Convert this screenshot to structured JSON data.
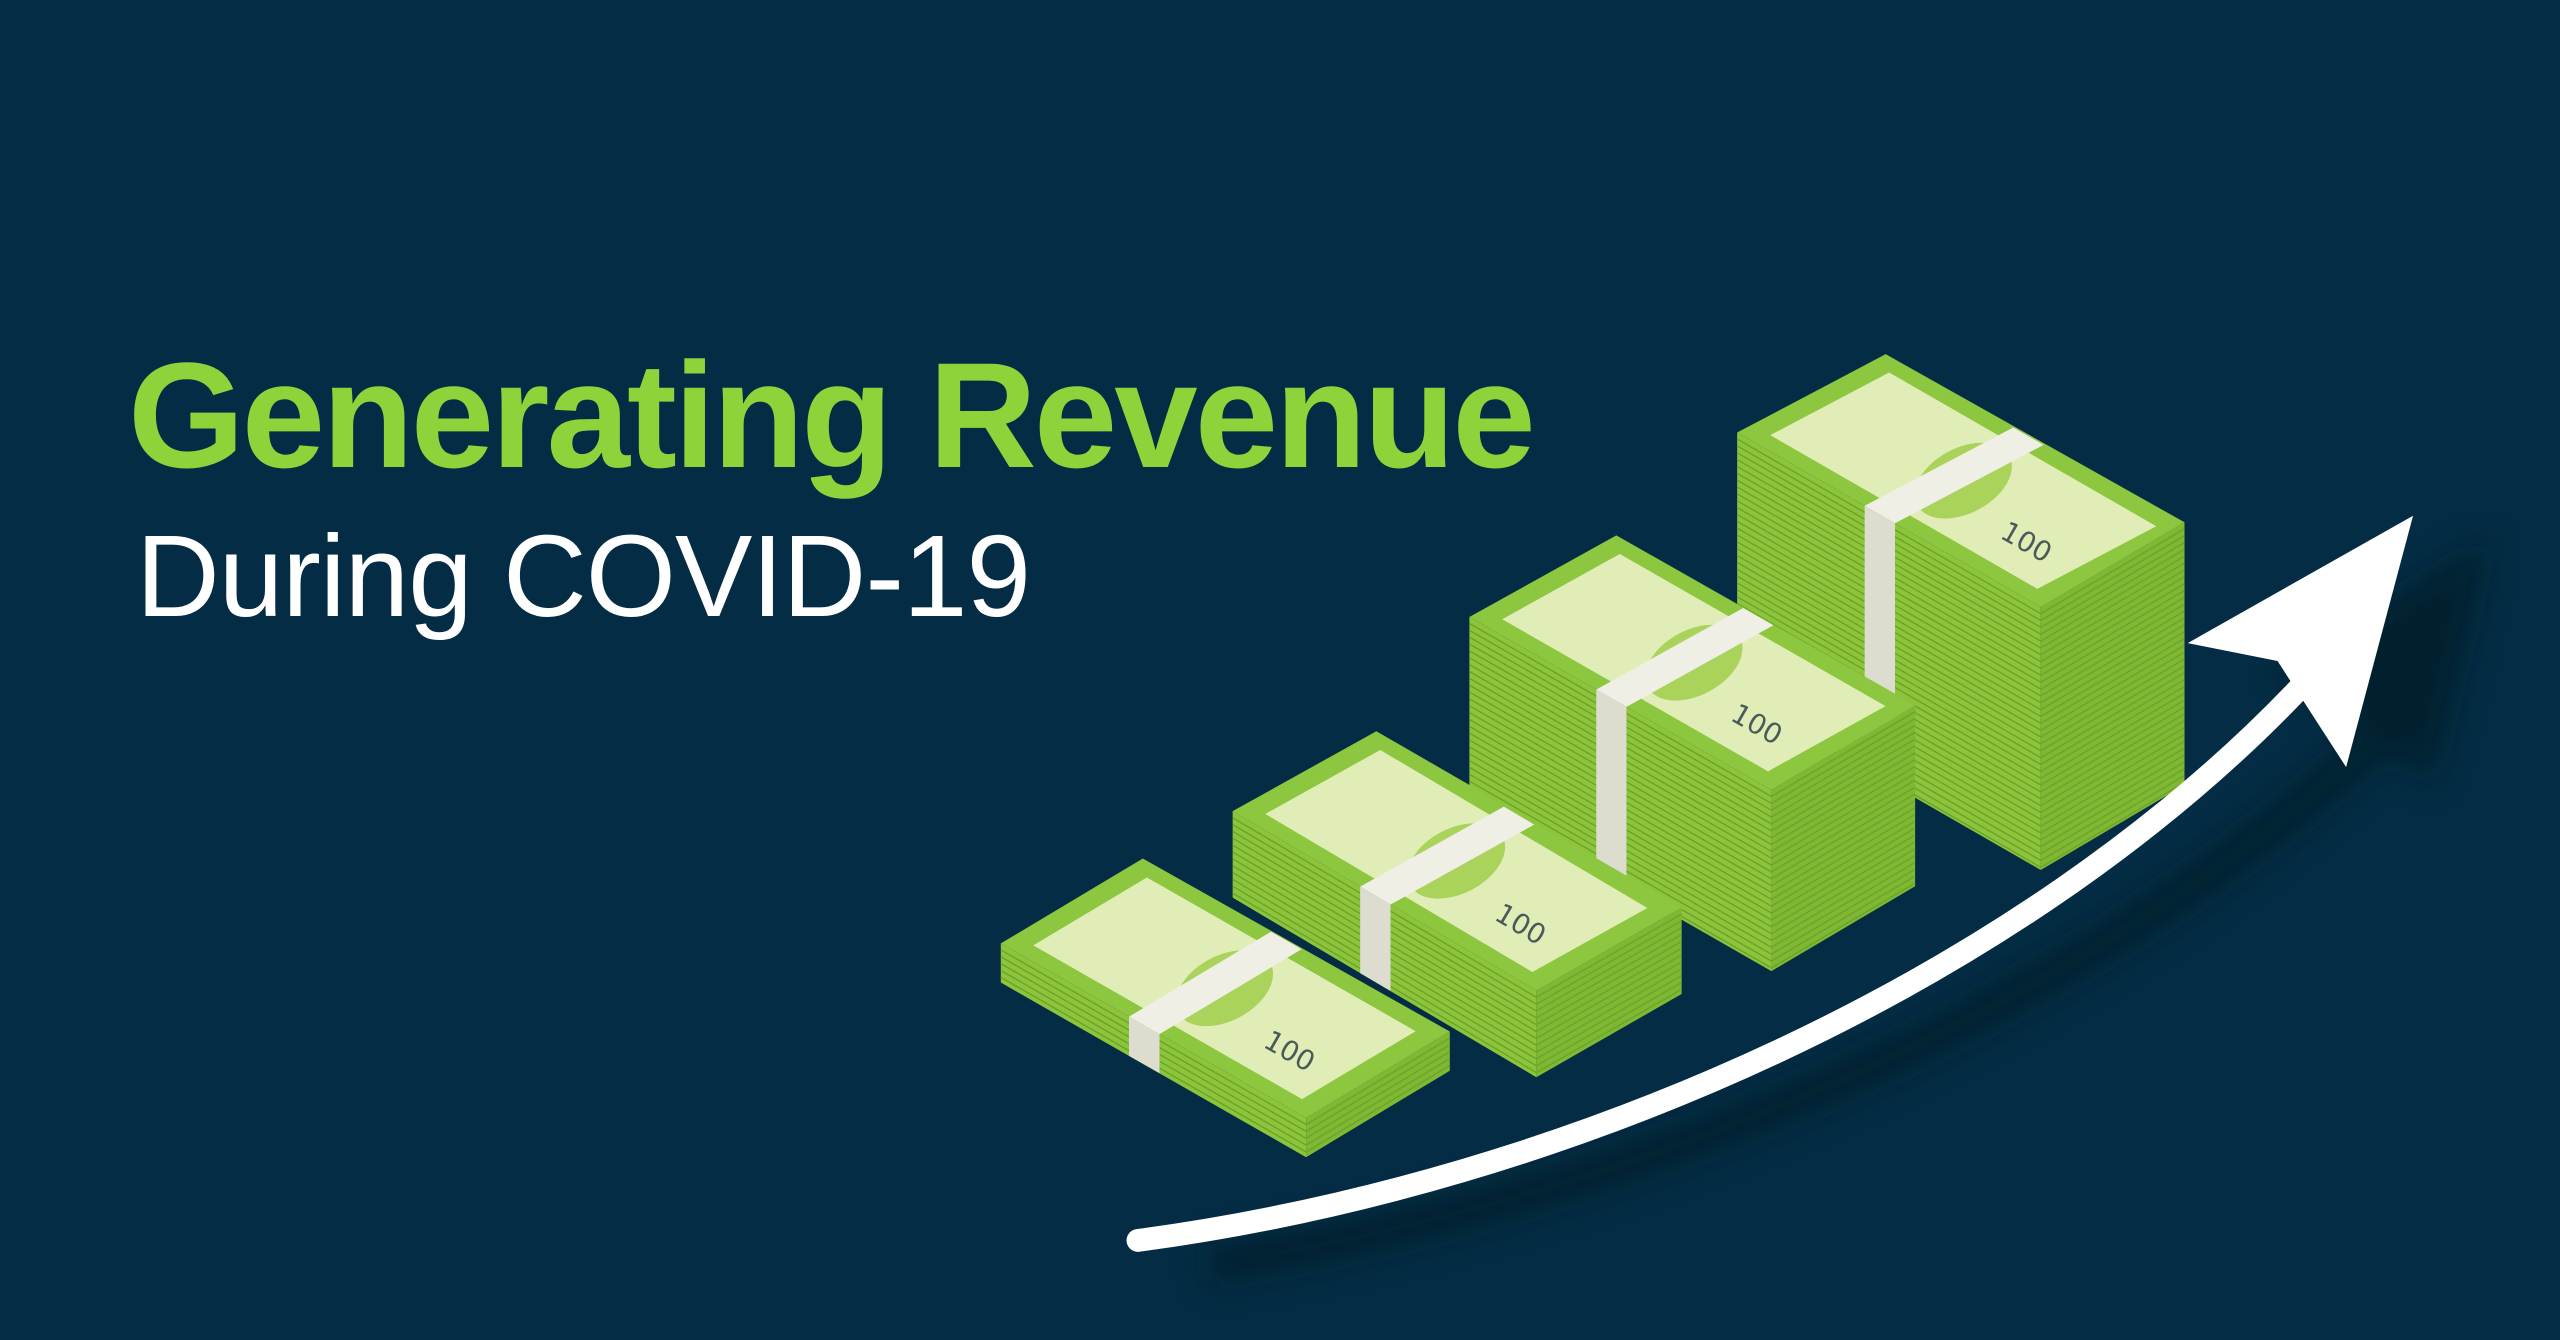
{
  "headline": {
    "title": "Generating Revenue",
    "subtitle": "During COVID-19"
  },
  "illustration": {
    "stack_count": 4,
    "note_label": "100",
    "trend_arrow_icon": "upward-curved-arrow-icon"
  },
  "colors": {
    "background": "#042d45",
    "title": "#8fd33a",
    "subtitle": "#ffffff",
    "money_green": "#8dc63f",
    "note_face": "#e1edb6",
    "band": "#efefe6",
    "arrow": "#ffffff"
  }
}
